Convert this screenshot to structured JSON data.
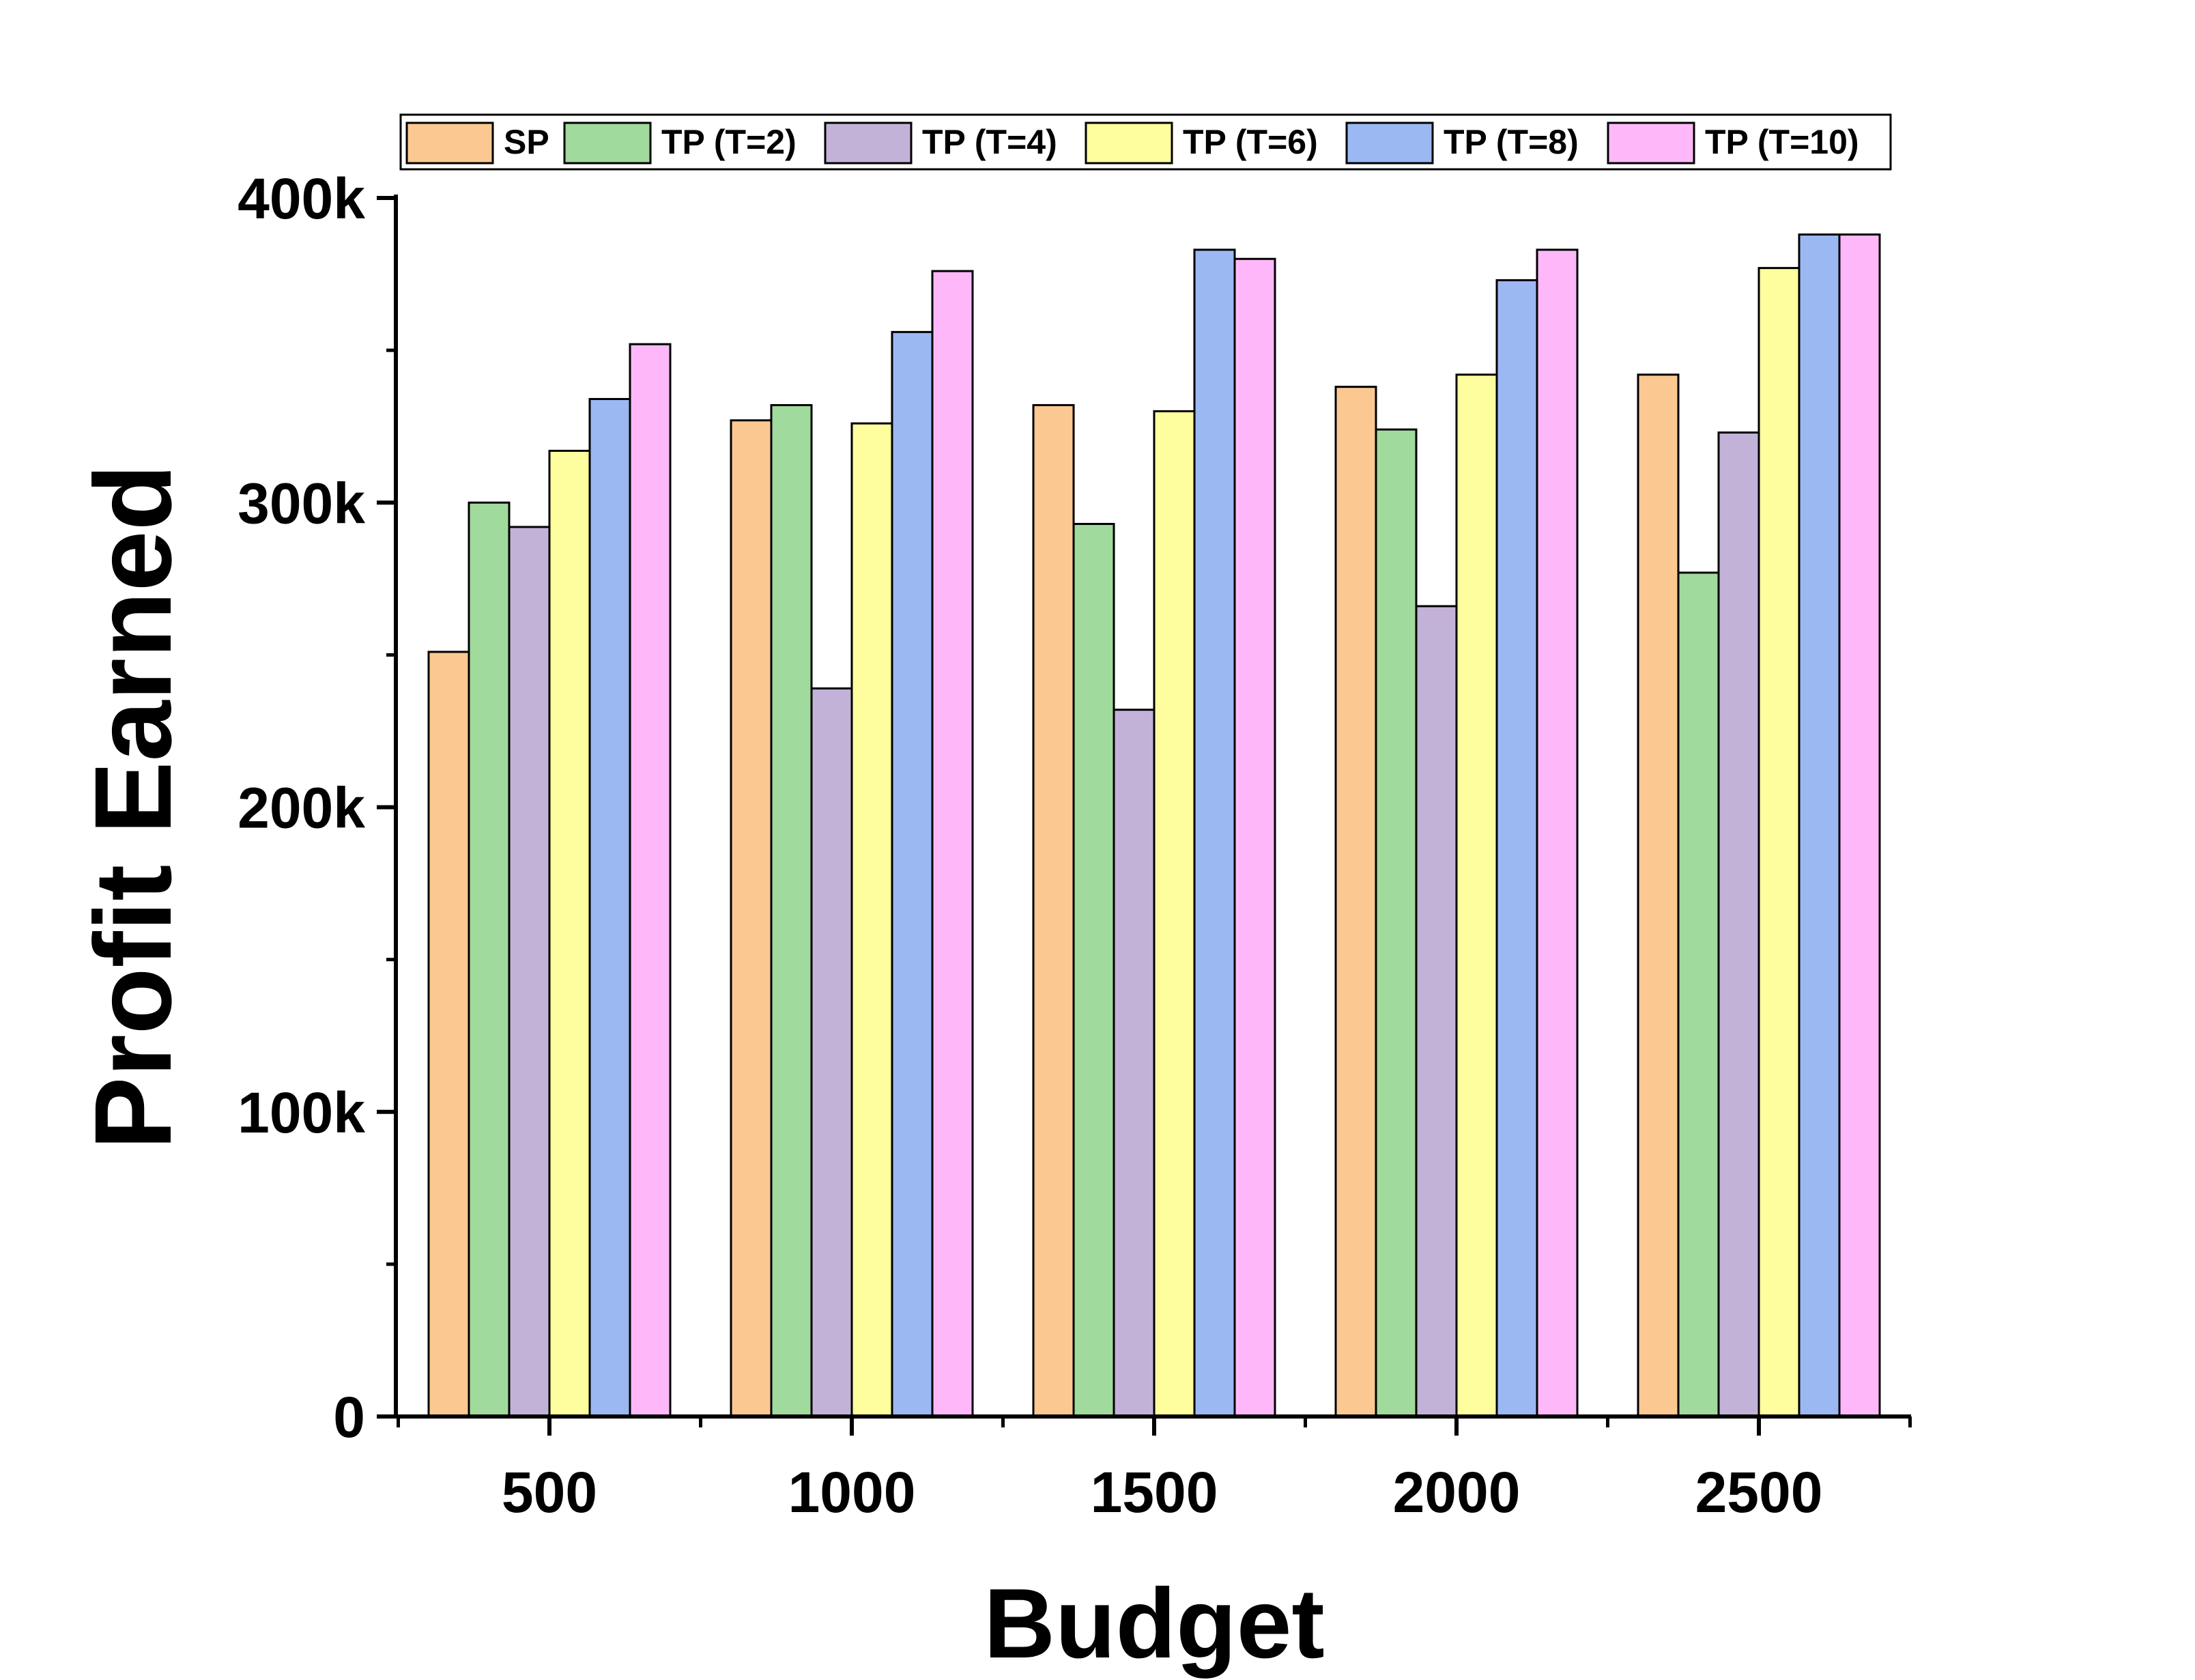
{
  "chart_data": {
    "type": "bar",
    "xlabel": "Budget",
    "ylabel": "Profit Earned",
    "categories": [
      "500",
      "1000",
      "1500",
      "2000",
      "2500"
    ],
    "ylim": [
      0,
      400000
    ],
    "y_ticks": [
      {
        "value": 0,
        "label": "0"
      },
      {
        "value": 100000,
        "label": "100k"
      },
      {
        "value": 200000,
        "label": "200k"
      },
      {
        "value": 300000,
        "label": "300k"
      },
      {
        "value": 400000,
        "label": "400k"
      }
    ],
    "legend_position": "top",
    "grid": false,
    "series": [
      {
        "name": "SP",
        "color": "#FBC892",
        "values": [
          251000,
          327000,
          332000,
          338000,
          342000
        ]
      },
      {
        "name": "TP (T=2)",
        "color": "#A0DA9C",
        "values": [
          300000,
          332000,
          293000,
          324000,
          277000
        ]
      },
      {
        "name": "TP (T=4)",
        "color": "#C3B2D8",
        "values": [
          292000,
          239000,
          232000,
          266000,
          323000
        ]
      },
      {
        "name": "TP (T=6)",
        "color": "#FFFE9F",
        "values": [
          317000,
          326000,
          330000,
          342000,
          377000
        ]
      },
      {
        "name": "TP (T=8)",
        "color": "#9BB8F3",
        "values": [
          334000,
          356000,
          383000,
          373000,
          388000
        ]
      },
      {
        "name": "TP (T=10)",
        "color": "#FEB8F9",
        "values": [
          352000,
          376000,
          380000,
          383000,
          388000
        ]
      }
    ]
  }
}
